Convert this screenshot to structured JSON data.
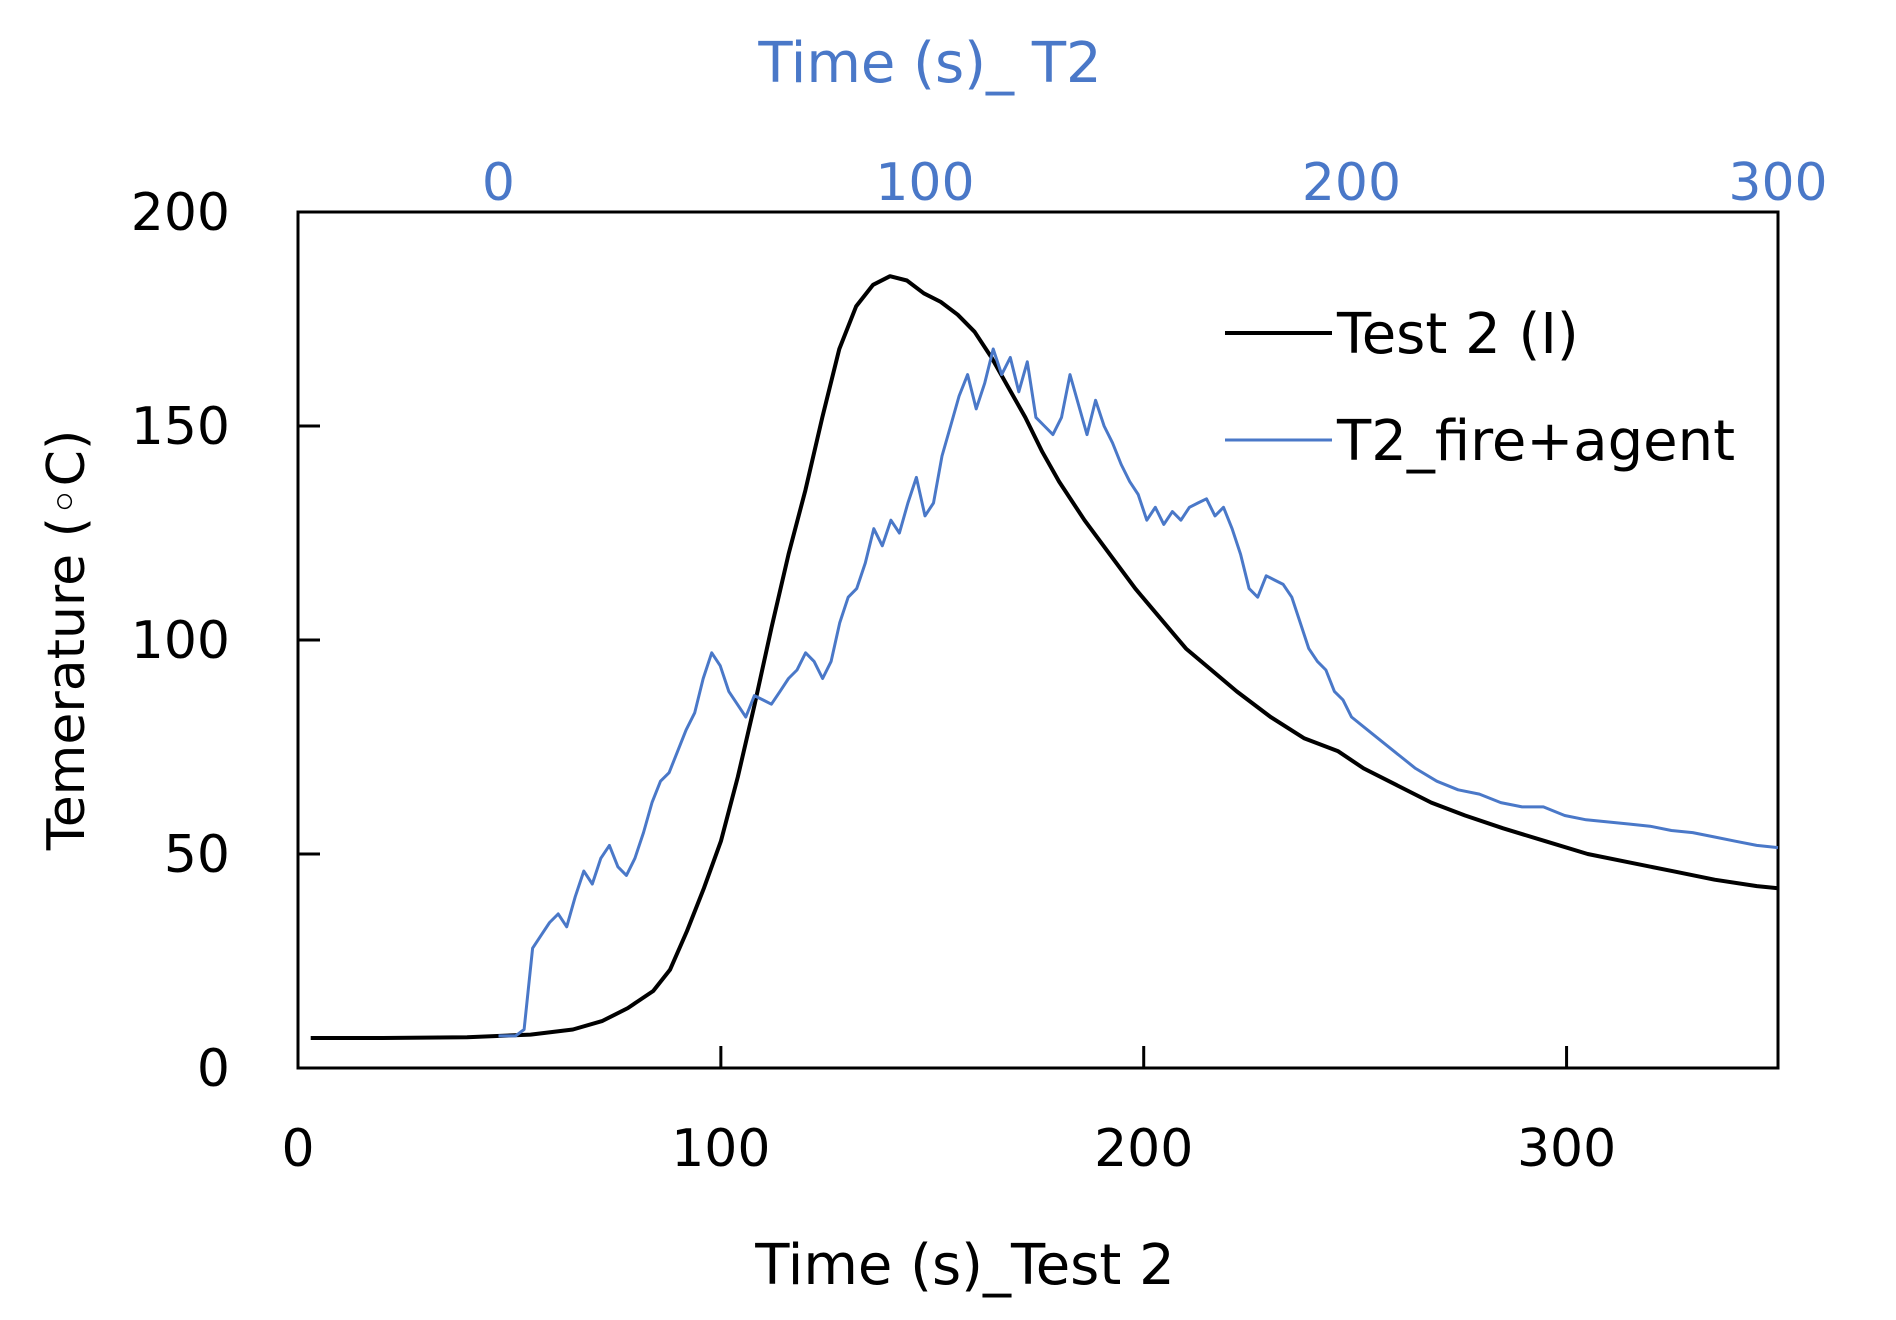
{
  "chart_data": {
    "type": "line",
    "title": "",
    "xlabel": "Time (s)_Test 2",
    "x2label": "Time (s)_ T2",
    "ylabel": "Temerature (◦C)",
    "xlim": [
      0,
      350
    ],
    "x2lim": [
      -47,
      300
    ],
    "ylim": [
      0,
      200
    ],
    "xticks": [
      "0",
      "100",
      "200",
      "300"
    ],
    "x2ticks": [
      "0",
      "100",
      "200",
      "300"
    ],
    "yticks": [
      "0",
      "50",
      "100",
      "150",
      "200"
    ],
    "grid": false,
    "legend_position": "top-right",
    "colors": {
      "test2": "#000000",
      "t2": "#4a78c8",
      "axis": "#000000"
    },
    "series": [
      {
        "name": "Test 2 (I)",
        "axis": "bottom",
        "x": [
          3,
          20,
          40,
          55,
          65,
          72,
          78,
          84,
          88,
          92,
          96,
          100,
          104,
          108,
          112,
          116,
          120,
          124,
          128,
          132,
          136,
          140,
          144,
          148,
          152,
          156,
          160,
          164,
          168,
          172,
          176,
          180,
          186,
          192,
          198,
          204,
          210,
          216,
          222,
          230,
          238,
          246,
          252,
          260,
          268,
          276,
          285,
          295,
          305,
          315,
          325,
          335,
          345,
          350
        ],
        "y": [
          7,
          7,
          7.2,
          7.8,
          9,
          11,
          14,
          18,
          23,
          32,
          42,
          53,
          68,
          85,
          103,
          120,
          135,
          152,
          168,
          178,
          183,
          185,
          184,
          181,
          179,
          176,
          172,
          166,
          159,
          152,
          144,
          137,
          128,
          120,
          112,
          105,
          98,
          93,
          88,
          82,
          77,
          74,
          70,
          66,
          62,
          59,
          56,
          53,
          50,
          48,
          46,
          44,
          42.5,
          42
        ]
      },
      {
        "name": "T2_fire+agent",
        "axis": "top",
        "x": [
          0,
          2,
          4,
          6,
          8,
          10,
          12,
          14,
          16,
          18,
          20,
          22,
          24,
          26,
          28,
          30,
          32,
          34,
          36,
          38,
          40,
          42,
          44,
          46,
          48,
          50,
          52,
          54,
          56,
          58,
          60,
          62,
          64,
          66,
          68,
          70,
          72,
          74,
          76,
          78,
          80,
          82,
          84,
          86,
          88,
          90,
          92,
          94,
          96,
          98,
          100,
          102,
          104,
          106,
          108,
          110,
          112,
          114,
          116,
          118,
          120,
          122,
          124,
          126,
          128,
          130,
          132,
          134,
          136,
          138,
          140,
          142,
          144,
          146,
          148,
          150,
          152,
          154,
          156,
          158,
          160,
          162,
          164,
          166,
          168,
          170,
          172,
          174,
          176,
          178,
          180,
          182,
          184,
          186,
          188,
          190,
          192,
          194,
          196,
          198,
          200,
          205,
          210,
          215,
          220,
          225,
          230,
          235,
          240,
          245,
          250,
          255,
          260,
          265,
          270,
          275,
          280,
          285,
          290,
          295,
          300
        ],
        "y": [
          7.5,
          7.5,
          7.5,
          9,
          28,
          31,
          34,
          36,
          33,
          40,
          46,
          43,
          49,
          52,
          47,
          45,
          49,
          55,
          62,
          67,
          69,
          74,
          79,
          83,
          91,
          97,
          94,
          88,
          85,
          82,
          87,
          86,
          85,
          88,
          91,
          93,
          97,
          95,
          91,
          95,
          104,
          110,
          112,
          118,
          126,
          122,
          128,
          125,
          132,
          138,
          129,
          132,
          143,
          150,
          157,
          162,
          154,
          160,
          168,
          162,
          166,
          158,
          165,
          152,
          150,
          148,
          152,
          162,
          155,
          148,
          156,
          150,
          146,
          141,
          137,
          134,
          128,
          131,
          127,
          130,
          128,
          131,
          132,
          133,
          129,
          131,
          126,
          120,
          112,
          110,
          115,
          114,
          113,
          110,
          104,
          98,
          95,
          93,
          88,
          86,
          82,
          78,
          74,
          70,
          67,
          65,
          64,
          62,
          61,
          61,
          59,
          58,
          57.5,
          57,
          56.5,
          55.5,
          55,
          54,
          53,
          52,
          51.5
        ]
      }
    ]
  }
}
